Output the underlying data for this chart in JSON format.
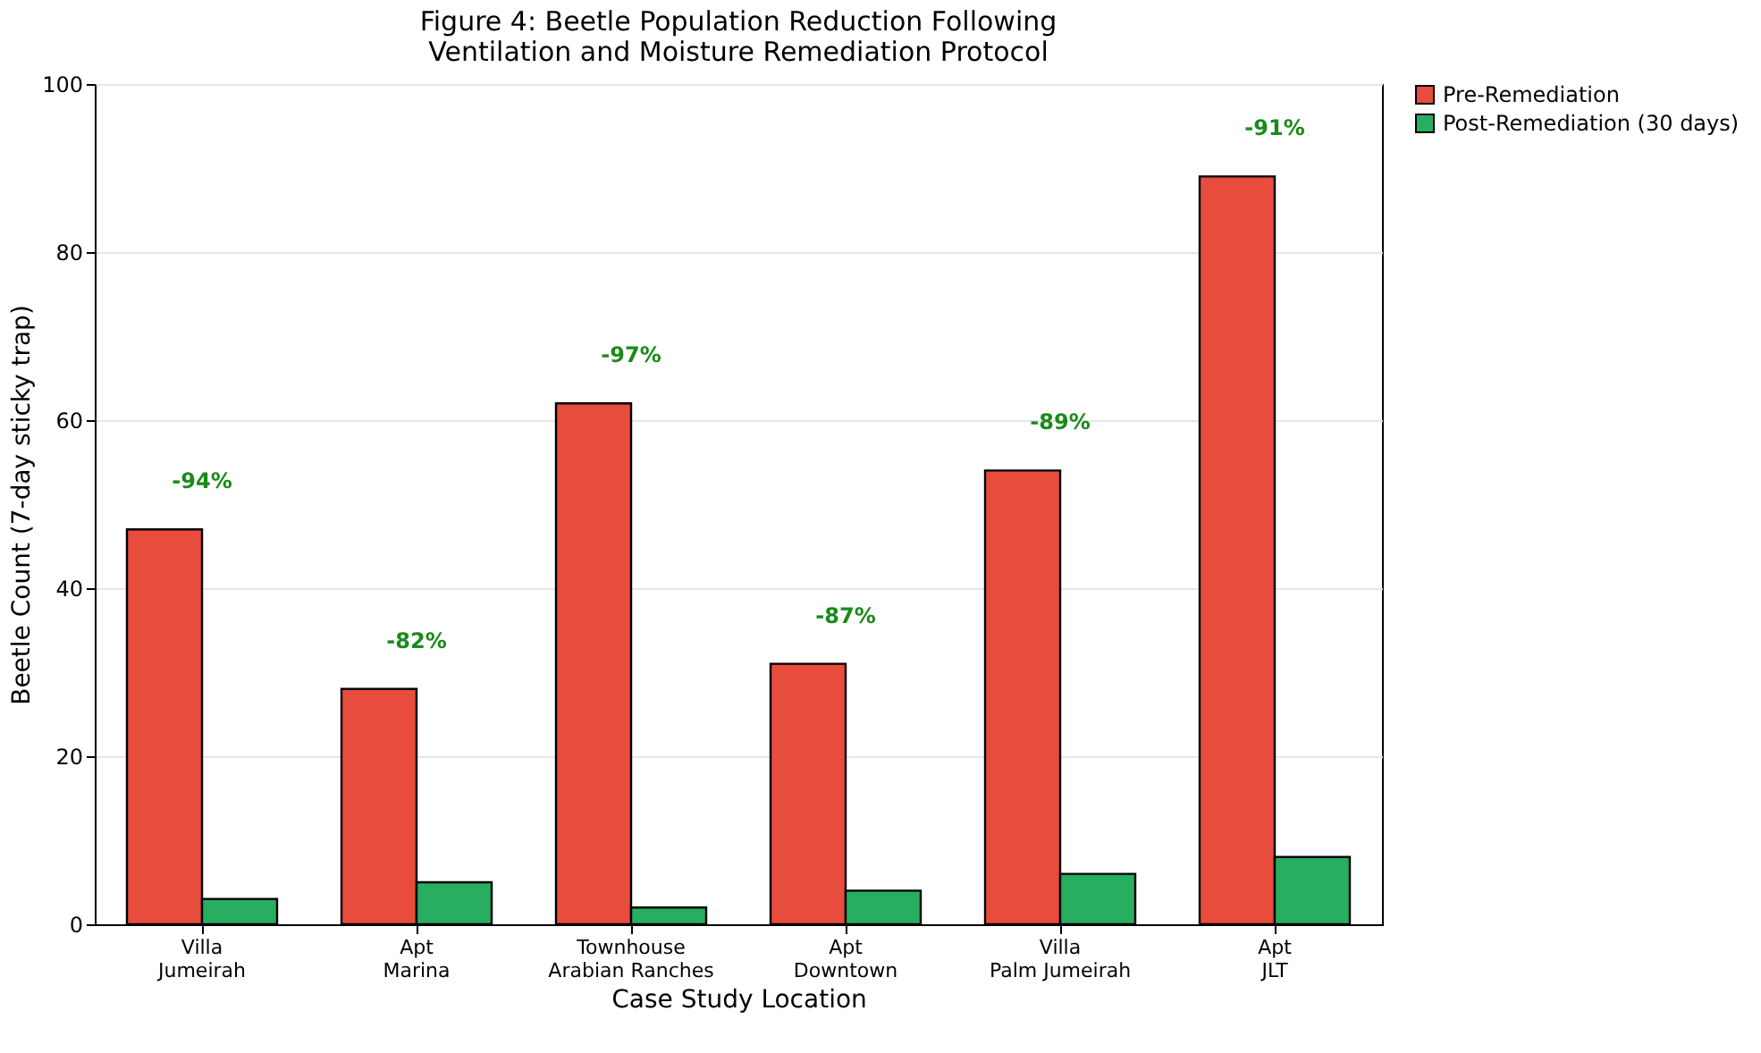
{
  "chart_data": {
    "type": "bar",
    "title": "Figure 4: Beetle Population Reduction Following\nVentilation and Moisture Remediation Protocol",
    "xlabel": "Case Study Location",
    "ylabel": "Beetle Count (7-day sticky trap)",
    "categories": [
      "Villa\nJumeirah",
      "Apt\nMarina",
      "Townhouse\nArabian Ranches",
      "Apt\nDowntown",
      "Villa\nPalm Jumeirah",
      "Apt\nJLT"
    ],
    "series": [
      {
        "name": "Pre-Remediation",
        "color": "#e74c3c",
        "values": [
          47,
          28,
          62,
          31,
          54,
          89
        ]
      },
      {
        "name": "Post-Remediation (30 days)",
        "color": "#27ae60",
        "values": [
          3,
          5,
          2,
          4,
          6,
          8
        ]
      }
    ],
    "ylim": [
      0,
      100
    ],
    "yticks": [
      0,
      20,
      40,
      60,
      80,
      100
    ],
    "grid": "y",
    "legend": "top right",
    "annotations": [
      {
        "text": "-94%",
        "x": "Villa\nJumeirah",
        "y": 47
      },
      {
        "text": "-82%",
        "x": "Apt\nMarina",
        "y": 28
      },
      {
        "text": "-97%",
        "x": "Townhouse\nArabian Ranches",
        "y": 62
      },
      {
        "text": "-87%",
        "x": "Apt\nDowntown",
        "y": 31
      },
      {
        "text": "-89%",
        "x": "Villa\nPalm Jumeirah",
        "y": 54
      },
      {
        "text": "-91%",
        "x": "Apt\nJLT",
        "y": 89
      }
    ]
  }
}
